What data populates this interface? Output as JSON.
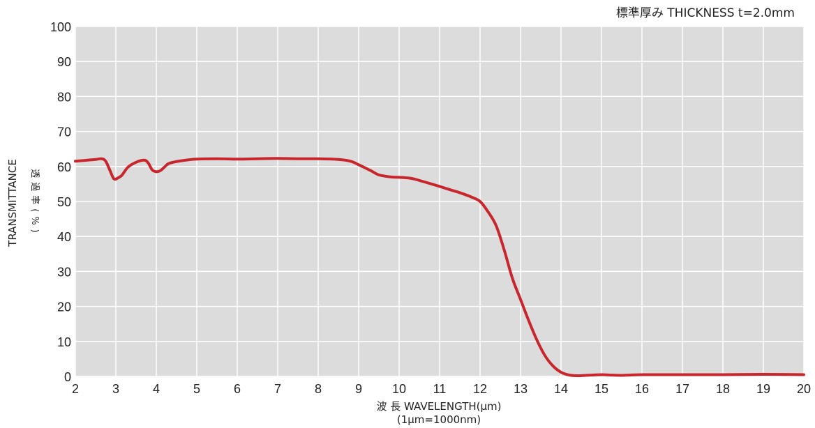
{
  "chart_data": {
    "type": "line",
    "title": "標準厚み THICKNESS t=2.0mm",
    "xlabel": "波 長 WAVELENGTH(μm)",
    "xlabel_note": "(1μm=1000nm)",
    "ylabel": "TRANSMITTANCE",
    "ylabel_jp": "透過率(%)",
    "xlim": [
      2,
      20
    ],
    "ylim": [
      0,
      100
    ],
    "x_ticks": [
      "2",
      "3",
      "4",
      "5",
      "6",
      "7",
      "8",
      "9",
      "10",
      "11",
      "12",
      "13",
      "14",
      "15",
      "16",
      "17",
      "18",
      "19",
      "20"
    ],
    "y_ticks": [
      "0",
      "10",
      "20",
      "30",
      "40",
      "50",
      "60",
      "70",
      "80",
      "90",
      "100"
    ],
    "grid": true,
    "background_color": "#dcdcdc",
    "grid_color": "#ffffff",
    "series": [
      {
        "color": "#c8262d",
        "x": [
          2,
          2.3,
          2.5,
          2.65,
          2.75,
          2.85,
          2.95,
          3.05,
          3.15,
          3.3,
          3.5,
          3.7,
          3.8,
          3.9,
          4.0,
          4.1,
          4.2,
          4.3,
          4.5,
          4.8,
          5.0,
          5.5,
          6.0,
          6.5,
          7.0,
          7.5,
          8.0,
          8.5,
          8.8,
          9.0,
          9.3,
          9.5,
          9.8,
          10.0,
          10.3,
          10.5,
          10.8,
          11.0,
          11.3,
          11.5,
          11.8,
          12.0,
          12.2,
          12.4,
          12.6,
          12.8,
          13.0,
          13.2,
          13.4,
          13.6,
          13.8,
          14.0,
          14.2,
          14.4,
          14.6,
          14.8,
          15.0,
          15.2,
          15.5,
          16.0,
          17.0,
          18.0,
          19.0,
          20.0
        ],
        "y": [
          61.5,
          61.8,
          62.0,
          62.2,
          61.5,
          59.0,
          56.5,
          56.7,
          57.5,
          59.8,
          61.2,
          61.8,
          61.0,
          59.0,
          58.5,
          58.8,
          59.8,
          60.8,
          61.4,
          61.9,
          62.1,
          62.2,
          62.1,
          62.2,
          62.3,
          62.2,
          62.2,
          62.0,
          61.5,
          60.5,
          58.8,
          57.6,
          57.0,
          56.9,
          56.6,
          56.0,
          55.0,
          54.3,
          53.2,
          52.5,
          51.2,
          50.0,
          47.0,
          43.0,
          36.0,
          28.0,
          22.0,
          16.0,
          10.5,
          6.0,
          3.0,
          1.2,
          0.4,
          0.2,
          0.3,
          0.4,
          0.5,
          0.4,
          0.3,
          0.5,
          0.5,
          0.5,
          0.6,
          0.5
        ]
      }
    ]
  }
}
